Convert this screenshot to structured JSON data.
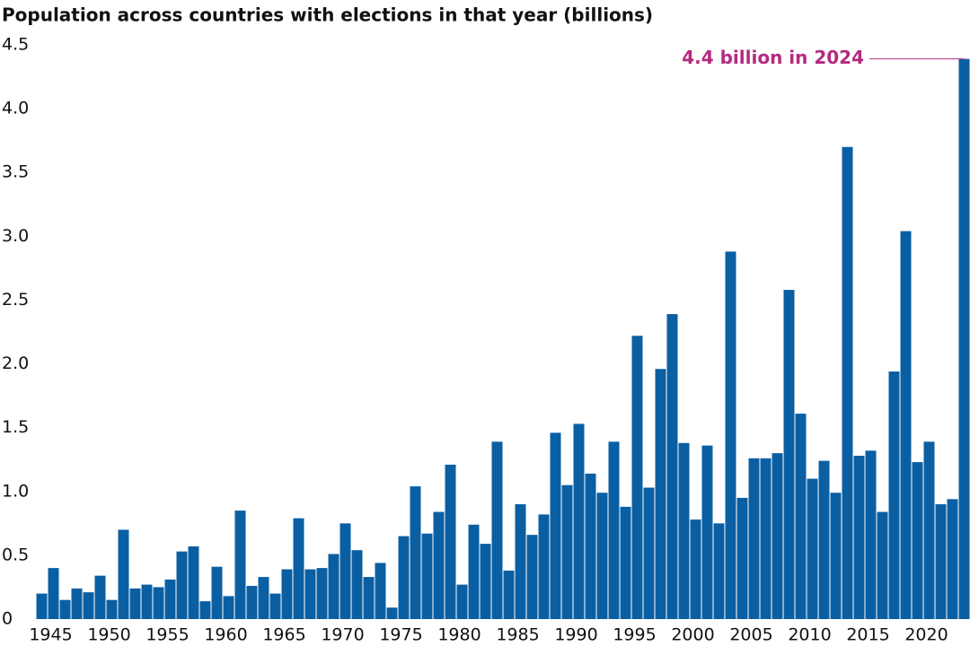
{
  "chart_data": {
    "type": "bar",
    "title": "Population across countries with elections in that year (billions)",
    "annotation": "4.4 billion in 2024",
    "color": "#0a5fa3",
    "annotation_color": "#b52a80",
    "categories": [
      "1945",
      null,
      null,
      null,
      null,
      "1950",
      null,
      null,
      null,
      null,
      "1955",
      null,
      null,
      null,
      null,
      "1960",
      null,
      null,
      null,
      null,
      "1965",
      null,
      null,
      null,
      null,
      "1970",
      null,
      null,
      null,
      null,
      "1975",
      null,
      null,
      null,
      null,
      "1980",
      null,
      null,
      null,
      null,
      "1985",
      null,
      null,
      null,
      null,
      "1990",
      null,
      null,
      null,
      null,
      "1995",
      null,
      null,
      null,
      null,
      "2000",
      null,
      null,
      null,
      null,
      "2005",
      null,
      null,
      null,
      null,
      "2010",
      null,
      null,
      null,
      null,
      "2015",
      null,
      null,
      null,
      null,
      "2020",
      null,
      null,
      null,
      null
    ],
    "values": [
      0.2,
      0.4,
      0.15,
      0.24,
      0.21,
      0.34,
      0.15,
      0.7,
      0.24,
      0.27,
      0.25,
      0.31,
      0.53,
      0.57,
      0.14,
      0.41,
      0.18,
      0.85,
      0.26,
      0.33,
      0.2,
      0.39,
      0.79,
      0.39,
      0.4,
      0.51,
      0.75,
      0.54,
      0.33,
      0.44,
      0.09,
      0.65,
      1.04,
      0.67,
      0.84,
      1.21,
      0.27,
      0.74,
      0.59,
      1.39,
      0.38,
      0.9,
      0.66,
      0.82,
      1.46,
      1.05,
      1.53,
      1.14,
      0.99,
      1.39,
      0.88,
      2.22,
      1.03,
      1.96,
      2.39,
      1.38,
      0.78,
      1.36,
      0.75,
      2.88,
      0.95,
      1.26,
      1.26,
      1.3,
      2.58,
      1.61,
      1.1,
      1.24,
      0.99,
      3.7,
      1.28,
      1.32,
      0.84,
      1.94,
      3.04,
      1.23,
      1.39,
      0.9,
      0.94,
      4.39
    ],
    "ylim": [
      0,
      4.5
    ],
    "yticks": [
      0,
      0.5,
      {
        "value": 1,
        "label": "1.0"
      },
      1.5,
      {
        "value": 2,
        "label": "2.0"
      },
      2.5,
      {
        "value": 3,
        "label": "3.0"
      },
      3.5,
      {
        "value": 4,
        "label": "4.0"
      },
      4.5
    ],
    "grid": false
  }
}
